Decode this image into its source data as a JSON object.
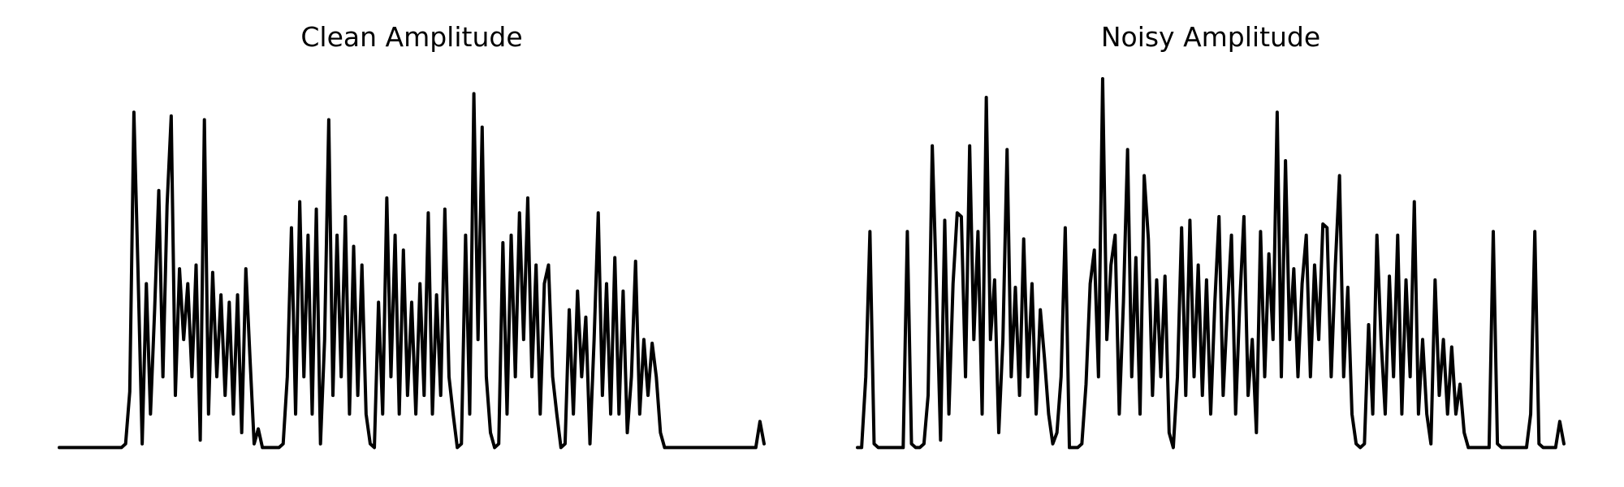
{
  "chart_data": [
    {
      "type": "line",
      "title": "Clean Amplitude",
      "color": "#000000",
      "ylim": [
        0,
        1
      ],
      "values": [
        0.01,
        0.01,
        0.01,
        0.01,
        0.01,
        0.01,
        0.01,
        0.01,
        0.01,
        0.01,
        0.01,
        0.01,
        0.01,
        0.01,
        0.01,
        0.01,
        0.02,
        0.16,
        0.91,
        0.48,
        0.02,
        0.45,
        0.1,
        0.38,
        0.7,
        0.2,
        0.66,
        0.9,
        0.15,
        0.49,
        0.3,
        0.45,
        0.2,
        0.5,
        0.03,
        0.89,
        0.1,
        0.48,
        0.2,
        0.42,
        0.15,
        0.4,
        0.1,
        0.42,
        0.05,
        0.49,
        0.25,
        0.02,
        0.06,
        0.01,
        0.01,
        0.01,
        0.01,
        0.01,
        0.02,
        0.2,
        0.6,
        0.1,
        0.67,
        0.2,
        0.58,
        0.1,
        0.65,
        0.02,
        0.3,
        0.89,
        0.15,
        0.58,
        0.2,
        0.63,
        0.1,
        0.55,
        0.15,
        0.5,
        0.1,
        0.02,
        0.01,
        0.4,
        0.1,
        0.68,
        0.2,
        0.58,
        0.1,
        0.54,
        0.15,
        0.4,
        0.1,
        0.45,
        0.15,
        0.64,
        0.1,
        0.42,
        0.15,
        0.65,
        0.2,
        0.1,
        0.01,
        0.02,
        0.58,
        0.1,
        0.96,
        0.3,
        0.87,
        0.2,
        0.05,
        0.01,
        0.02,
        0.56,
        0.1,
        0.58,
        0.2,
        0.64,
        0.3,
        0.68,
        0.2,
        0.5,
        0.1,
        0.45,
        0.5,
        0.2,
        0.1,
        0.01,
        0.02,
        0.38,
        0.1,
        0.43,
        0.2,
        0.36,
        0.02,
        0.3,
        0.64,
        0.15,
        0.45,
        0.1,
        0.52,
        0.1,
        0.43,
        0.05,
        0.2,
        0.51,
        0.1,
        0.3,
        0.15,
        0.29,
        0.2,
        0.05,
        0.01,
        0.01,
        0.01,
        0.01,
        0.01,
        0.01,
        0.01,
        0.01,
        0.01,
        0.01,
        0.01,
        0.01,
        0.01,
        0.01,
        0.01,
        0.01,
        0.01,
        0.01,
        0.01,
        0.01,
        0.01,
        0.01,
        0.01,
        0.08,
        0.02
      ]
    },
    {
      "type": "line",
      "title": "Noisy Amplitude",
      "color": "#000000",
      "ylim": [
        0,
        1
      ],
      "values": [
        0.01,
        0.01,
        0.2,
        0.59,
        0.02,
        0.01,
        0.01,
        0.01,
        0.01,
        0.01,
        0.01,
        0.01,
        0.59,
        0.02,
        0.01,
        0.01,
        0.02,
        0.15,
        0.82,
        0.44,
        0.03,
        0.62,
        0.1,
        0.45,
        0.64,
        0.63,
        0.2,
        0.82,
        0.3,
        0.59,
        0.1,
        0.95,
        0.3,
        0.46,
        0.05,
        0.3,
        0.81,
        0.2,
        0.44,
        0.15,
        0.57,
        0.2,
        0.45,
        0.1,
        0.38,
        0.25,
        0.1,
        0.02,
        0.05,
        0.2,
        0.6,
        0.01,
        0.01,
        0.01,
        0.02,
        0.18,
        0.45,
        0.54,
        0.2,
        1.0,
        0.3,
        0.5,
        0.58,
        0.1,
        0.4,
        0.81,
        0.2,
        0.52,
        0.1,
        0.74,
        0.57,
        0.15,
        0.46,
        0.2,
        0.47,
        0.05,
        0.01,
        0.2,
        0.6,
        0.15,
        0.62,
        0.2,
        0.5,
        0.15,
        0.46,
        0.1,
        0.4,
        0.63,
        0.15,
        0.38,
        0.58,
        0.1,
        0.4,
        0.63,
        0.15,
        0.3,
        0.05,
        0.59,
        0.2,
        0.53,
        0.3,
        0.91,
        0.2,
        0.78,
        0.3,
        0.49,
        0.2,
        0.45,
        0.58,
        0.2,
        0.5,
        0.3,
        0.61,
        0.6,
        0.2,
        0.5,
        0.74,
        0.2,
        0.44,
        0.1,
        0.02,
        0.01,
        0.02,
        0.34,
        0.1,
        0.58,
        0.3,
        0.1,
        0.47,
        0.2,
        0.58,
        0.1,
        0.46,
        0.2,
        0.67,
        0.1,
        0.3,
        0.1,
        0.02,
        0.46,
        0.15,
        0.3,
        0.1,
        0.28,
        0.1,
        0.18,
        0.05,
        0.01,
        0.01,
        0.01,
        0.01,
        0.01,
        0.01,
        0.59,
        0.02,
        0.01,
        0.01,
        0.01,
        0.01,
        0.01,
        0.01,
        0.01,
        0.1,
        0.59,
        0.02,
        0.01,
        0.01,
        0.01,
        0.01,
        0.08,
        0.02
      ]
    }
  ]
}
